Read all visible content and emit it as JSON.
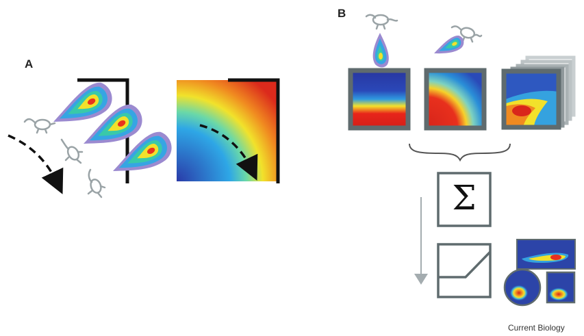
{
  "panels": {
    "a": {
      "label": "A"
    },
    "b": {
      "label": "B"
    }
  },
  "operators": {
    "sum_symbol": "Σ"
  },
  "footer": {
    "journal": "Current Biology"
  },
  "colors": {
    "arena_border": "#5f6b6e",
    "wall": "#111111",
    "rat_outline": "#9aa3a6",
    "arrow_gray": "#9aa3a6",
    "heat_low": "#2a3a9f",
    "heat_high": "#d62a1a"
  },
  "icons": [
    "rat-icon",
    "place-field-icon",
    "curly-brace-icon",
    "sum-icon",
    "threshold-icon",
    "down-arrow-icon"
  ]
}
